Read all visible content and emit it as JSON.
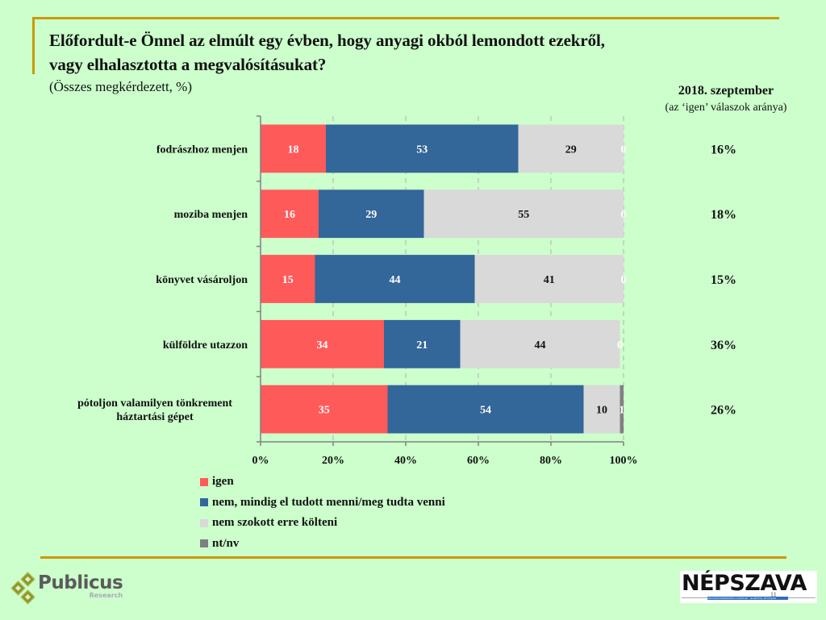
{
  "title_line1": "Előfordult-e Önnel az elmúlt egy évben, hogy anyagi okból lemondott ezekről,",
  "title_line2": "vagy elhalasztotta a megvalósításukat?",
  "subtitle": "(Összes megkérdezett, %)",
  "side_header": {
    "title": "2018. szeptember",
    "subtitle": "(az ‘igen’ válaszok aránya)"
  },
  "colors": {
    "igen": "#ff5a5a",
    "nem_mindig": "#336699",
    "nem_szokott": "#d9d9d9",
    "ntnv": "#808080",
    "background": "#ccffcc",
    "rule": "#c99a06"
  },
  "chart_data": {
    "type": "bar",
    "orientation": "horizontal",
    "stacked": true,
    "title": "Előfordult-e Önnel az elmúlt egy évben, hogy anyagi okból lemondott ezekről, vagy elhalasztotta a megvalósításukat?",
    "subtitle": "(Összes megkérdezett, %)",
    "xlabel": "",
    "ylabel": "",
    "xlim": [
      0,
      100
    ],
    "x_ticks": [
      "0%",
      "20%",
      "40%",
      "60%",
      "80%",
      "100%"
    ],
    "grid": "vertical dashed",
    "legend_position": "bottom-left",
    "categories": [
      "fodrászhoz menjen",
      "moziba menjen",
      "könyvet vásároljon",
      "külföldre utazzon",
      "pótoljon valamilyen tönkrement háztartási gépet"
    ],
    "category_lines": [
      [
        "fodrászhoz menjen"
      ],
      [
        "moziba menjen"
      ],
      [
        "könyvet vásároljon"
      ],
      [
        "külföldre utazzon"
      ],
      [
        "pótoljon valamilyen tönkrement",
        "háztartási gépet"
      ]
    ],
    "series": [
      {
        "name": "igen",
        "key": "igen",
        "values": [
          18,
          16,
          15,
          34,
          35
        ]
      },
      {
        "name": "nem, mindig el tudott menni/meg tudta venni",
        "key": "nem_mindig",
        "values": [
          53,
          29,
          44,
          21,
          54
        ]
      },
      {
        "name": "nem szokott erre költeni",
        "key": "nem_szokott",
        "values": [
          29,
          55,
          41,
          44,
          10
        ]
      },
      {
        "name": "nt/nv",
        "key": "ntnv",
        "values": [
          0,
          0,
          0,
          0,
          1
        ]
      }
    ],
    "side_column": {
      "title": "2018. szeptember",
      "subtitle": "(az ‘igen’ válaszok aránya)",
      "values": [
        "16%",
        "18%",
        "15%",
        "36%",
        "26%"
      ]
    }
  },
  "legend": [
    {
      "label": "igen",
      "key": "igen"
    },
    {
      "label": "nem, mindig el tudott menni/meg tudta venni",
      "key": "nem_mindig"
    },
    {
      "label": "nem szokott erre költeni",
      "key": "nem_szokott"
    },
    {
      "label": "nt/nv",
      "key": "ntnv"
    }
  ],
  "logos": {
    "publicus_name": "Publicus",
    "publicus_sub": "Research",
    "nepszava_name": "NÉPSZAVA",
    "nepszava_strip": "SZOCIÁLDEMOKRATA NAPILAP · ALAPÍTVA 1873-BAN"
  },
  "page_number": "11"
}
